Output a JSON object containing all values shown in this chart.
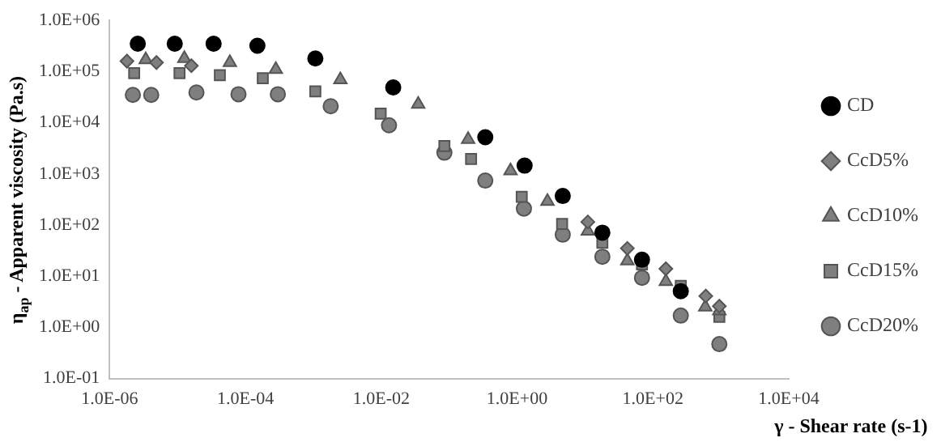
{
  "chart_data": {
    "type": "scatter",
    "xlabel": "γ - Shear rate (s-1)",
    "ylabel": "η$_{ap}$ - Apparent viscosity (Pa.s)",
    "log": "xy",
    "grid": false,
    "legend": "right",
    "xlim": [
      1e-06,
      10000.0
    ],
    "xticks": [
      {
        "value": 1e-06,
        "label": "1.0E-06"
      },
      {
        "value": 0.0001,
        "label": "1.0E-04"
      },
      {
        "value": 0.01,
        "label": "1.0E-02"
      },
      {
        "value": 1,
        "label": "1.0E+00"
      },
      {
        "value": 100,
        "label": "1.0E+02"
      },
      {
        "value": 10000,
        "label": "1.0E+04"
      }
    ],
    "ylim": [
      0.1,
      1000000.0
    ],
    "yticks": [
      {
        "value": 0.1,
        "label": "1.0E-01"
      },
      {
        "value": 1,
        "label": "1.0E+00"
      },
      {
        "value": 10,
        "label": "1.0E+01"
      },
      {
        "value": 100,
        "label": "1.0E+02"
      },
      {
        "value": 1000,
        "label": "1.0E+03"
      },
      {
        "value": 10000,
        "label": "1.0E+04"
      },
      {
        "value": 100000,
        "label": "1.0E+05"
      },
      {
        "value": 1000000,
        "label": "1.0E+06"
      }
    ],
    "series": [
      {
        "name": "CD",
        "color": "#000000",
        "marker": "circle",
        "x": [
          2.6e-06,
          9.1e-06,
          3.4e-05,
          0.00015,
          0.00107,
          0.015,
          0.34,
          1.29,
          4.7,
          18,
          69,
          257
        ],
        "values": [
          350000,
          350000,
          350000,
          320000,
          180000,
          49000,
          5200,
          1450,
          370,
          71,
          21,
          5.1
        ]
      },
      {
        "name": "CcD5%",
        "color": "#7f7f7f",
        "marker": "diamond",
        "x": [
          1.8e-06,
          4.9e-06,
          1.6e-05,
          11,
          42,
          155,
          600,
          950
        ],
        "values": [
          160000,
          150000,
          130000,
          115,
          35,
          14,
          4.1,
          2.6
        ]
      },
      {
        "name": "CcD10%",
        "color": "#7f7f7f",
        "marker": "triangle",
        "x": [
          3.4e-06,
          1.26e-05,
          5.9e-05,
          0.00028,
          0.0025,
          0.035,
          0.19,
          0.8,
          2.8,
          11,
          42,
          155,
          590,
          950
        ],
        "values": [
          170000,
          180000,
          150000,
          110000,
          69000,
          23000,
          4700,
          1150,
          290,
          76,
          20,
          7.9,
          2.5,
          2.1
        ]
      },
      {
        "name": "CcD15%",
        "color": "#7f7f7f",
        "marker": "square",
        "x": [
          2.3e-06,
          1.07e-05,
          4.2e-05,
          0.00018,
          0.00107,
          0.0098,
          0.085,
          0.21,
          1.17,
          4.6,
          18,
          69,
          257,
          950
        ],
        "values": [
          93000,
          93000,
          85000,
          74000,
          41000,
          15000,
          3500,
          1950,
          355,
          105,
          45,
          17,
          6.5,
          1.6
        ]
      },
      {
        "name": "CcD20%",
        "color": "#7f7f7f",
        "marker": "circle",
        "x": [
          2.2e-06,
          4.1e-06,
          1.9e-05,
          7.9e-05,
          0.0003,
          0.0018,
          0.013,
          0.085,
          0.34,
          1.26,
          4.7,
          18,
          69,
          257,
          950
        ],
        "values": [
          35000,
          35000,
          39000,
          36000,
          36000,
          21000,
          8900,
          2600,
          740,
          210,
          65,
          24,
          9.3,
          1.7,
          0.47
        ]
      }
    ]
  }
}
